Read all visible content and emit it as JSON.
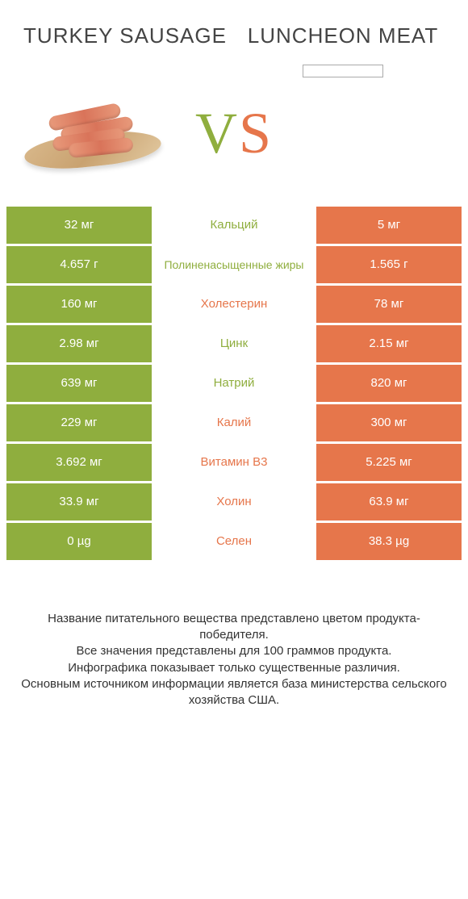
{
  "colors": {
    "green": "#8fae3e",
    "orange": "#e6764b",
    "green_bar_text": "#ffffff",
    "orange_bar_text": "#ffffff"
  },
  "product_left": {
    "name": "TURKEY SAUSAGE"
  },
  "product_right": {
    "name": "LUNCHEON MEAT"
  },
  "vs": {
    "v": "V",
    "s": "S"
  },
  "rows": [
    {
      "left": "32 мг",
      "mid": "Кальций",
      "right": "5 мг",
      "winner": "left"
    },
    {
      "left": "4.657 г",
      "mid": "Полиненасыщенные жиры",
      "right": "1.565 г",
      "winner": "left",
      "two": true
    },
    {
      "left": "160 мг",
      "mid": "Холестерин",
      "right": "78 мг",
      "winner": "right"
    },
    {
      "left": "2.98 мг",
      "mid": "Цинк",
      "right": "2.15 мг",
      "winner": "left"
    },
    {
      "left": "639 мг",
      "mid": "Натрий",
      "right": "820 мг",
      "winner": "left"
    },
    {
      "left": "229 мг",
      "mid": "Калий",
      "right": "300 мг",
      "winner": "right"
    },
    {
      "left": "3.692 мг",
      "mid": "Витамин B3",
      "right": "5.225 мг",
      "winner": "right"
    },
    {
      "left": "33.9 мг",
      "mid": "Холин",
      "right": "63.9 мг",
      "winner": "right"
    },
    {
      "left": "0 µg",
      "mid": "Селен",
      "right": "38.3 µg",
      "winner": "right"
    }
  ],
  "footer": {
    "l1": "Название питательного вещества представлено цветом продукта-победителя.",
    "l2": "Все значения представлены для 100 граммов продукта.",
    "l3": "Инфографика показывает только существенные различия.",
    "l4": "Основным источником информации является база министерства сельского хозяйства США."
  }
}
